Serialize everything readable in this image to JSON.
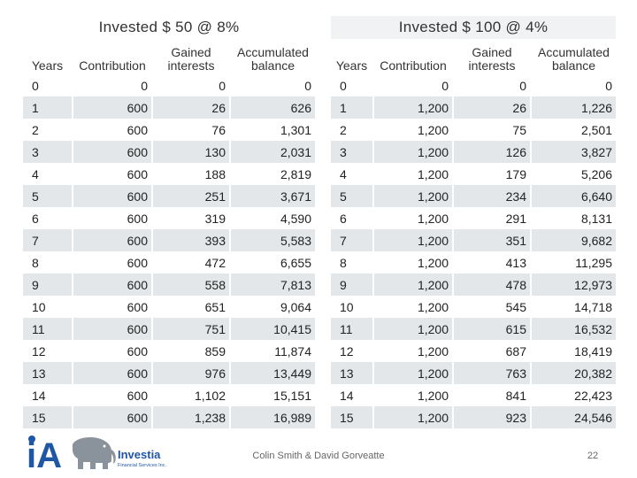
{
  "left": {
    "title": "Invested $ 50 @ 8%",
    "headers": [
      "Years",
      "Contribution",
      "Gained interests",
      "Accumulated balance"
    ],
    "rows": [
      [
        "0",
        "0",
        "0",
        "0"
      ],
      [
        "1",
        "600",
        "26",
        "626"
      ],
      [
        "2",
        "600",
        "76",
        "1,301"
      ],
      [
        "3",
        "600",
        "130",
        "2,031"
      ],
      [
        "4",
        "600",
        "188",
        "2,819"
      ],
      [
        "5",
        "600",
        "251",
        "3,671"
      ],
      [
        "6",
        "600",
        "319",
        "4,590"
      ],
      [
        "7",
        "600",
        "393",
        "5,583"
      ],
      [
        "8",
        "600",
        "472",
        "6,655"
      ],
      [
        "9",
        "600",
        "558",
        "7,813"
      ],
      [
        "10",
        "600",
        "651",
        "9,064"
      ],
      [
        "11",
        "600",
        "751",
        "10,415"
      ],
      [
        "12",
        "600",
        "859",
        "11,874"
      ],
      [
        "13",
        "600",
        "976",
        "13,449"
      ],
      [
        "14",
        "600",
        "1,102",
        "15,151"
      ],
      [
        "15",
        "600",
        "1,238",
        "16,989"
      ]
    ]
  },
  "right": {
    "title": "Invested $ 100 @ 4%",
    "headers": [
      "Years",
      "Contribution",
      "Gained interests",
      "Accumulated balance"
    ],
    "rows": [
      [
        "0",
        "0",
        "0",
        "0"
      ],
      [
        "1",
        "1,200",
        "26",
        "1,226"
      ],
      [
        "2",
        "1,200",
        "75",
        "2,501"
      ],
      [
        "3",
        "1,200",
        "126",
        "3,827"
      ],
      [
        "4",
        "1,200",
        "179",
        "5,206"
      ],
      [
        "5",
        "1,200",
        "234",
        "6,640"
      ],
      [
        "6",
        "1,200",
        "291",
        "8,131"
      ],
      [
        "7",
        "1,200",
        "351",
        "9,682"
      ],
      [
        "8",
        "1,200",
        "413",
        "11,295"
      ],
      [
        "9",
        "1,200",
        "478",
        "12,973"
      ],
      [
        "10",
        "1,200",
        "545",
        "14,718"
      ],
      [
        "11",
        "1,200",
        "615",
        "16,532"
      ],
      [
        "12",
        "1,200",
        "687",
        "18,419"
      ],
      [
        "13",
        "1,200",
        "763",
        "20,382"
      ],
      [
        "14",
        "1,200",
        "841",
        "22,423"
      ],
      [
        "15",
        "1,200",
        "923",
        "24,546"
      ]
    ]
  },
  "footer": {
    "authors": "Colin Smith & David Gorveatte",
    "page_number": "22"
  },
  "logo": {
    "mark": "iA",
    "name": "Investia",
    "subtitle": "Financial Services Inc.",
    "icon": "elephant-icon",
    "colors": {
      "blue": "#1f57a5",
      "gray": "#8a939c"
    }
  },
  "colors": {
    "stripe": "#e4e7ea",
    "title_band": "#f0f2f3"
  }
}
